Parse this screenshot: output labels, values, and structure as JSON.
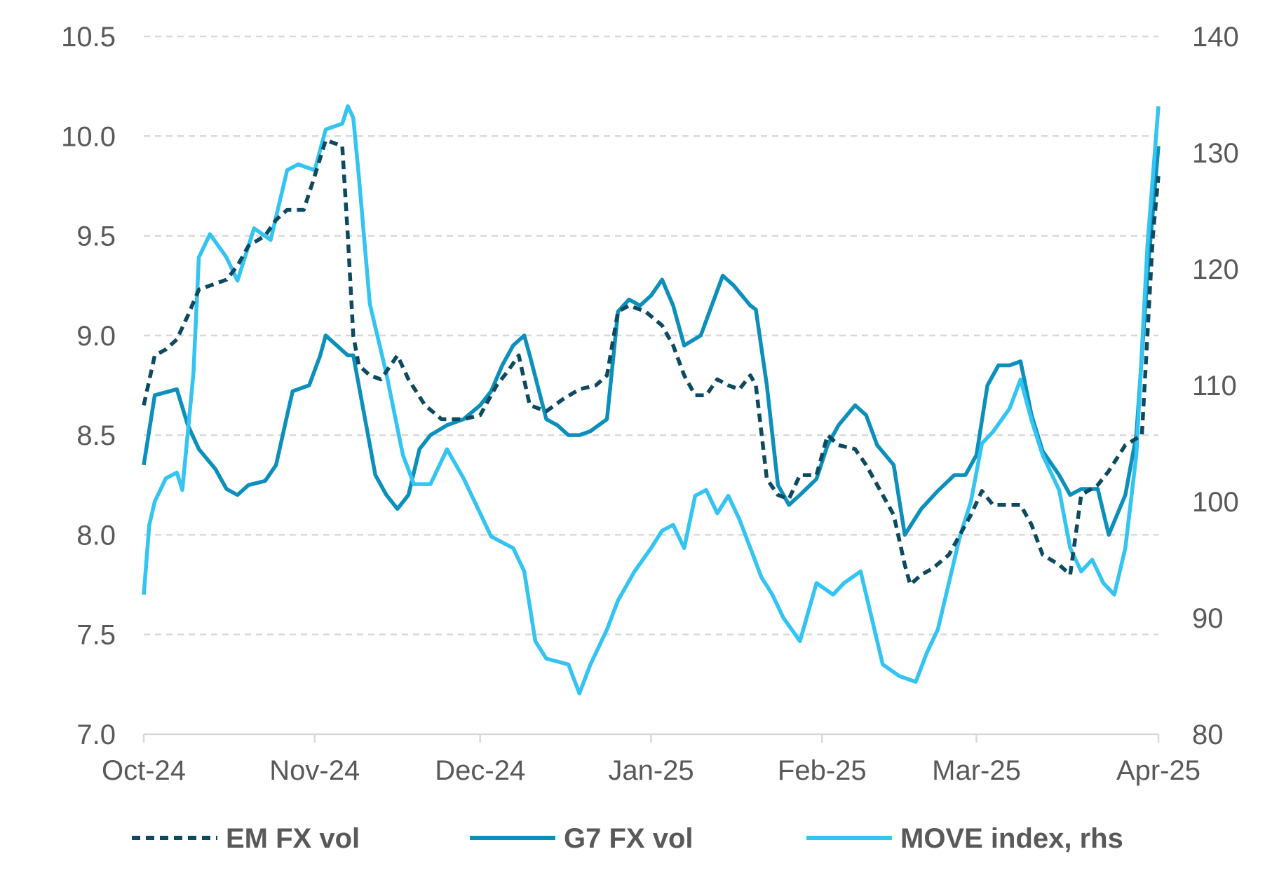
{
  "chart_data": {
    "type": "line",
    "x_ticks": [
      "Oct-24",
      "Nov-24",
      "Dec-24",
      "Jan-25",
      "Feb-25",
      "Mar-25",
      "Apr-25"
    ],
    "y_left": {
      "ticks": [
        "7.0",
        "7.5",
        "8.0",
        "8.5",
        "9.0",
        "9.5",
        "10.0",
        "10.5"
      ],
      "range": [
        7.0,
        10.5
      ]
    },
    "y_right": {
      "ticks": [
        "80",
        "90",
        "100",
        "110",
        "120",
        "130",
        "140"
      ],
      "range": [
        80,
        140
      ]
    },
    "grid": "horizontal dashed",
    "legend_position": "bottom",
    "series": [
      {
        "name": "EM FX vol",
        "axis": "left",
        "color": "#0d4a5f",
        "style": "dashed",
        "points": [
          [
            "2024-10-01",
            8.65
          ],
          [
            "2024-10-03",
            8.9
          ],
          [
            "2024-10-05",
            8.93
          ],
          [
            "2024-10-07",
            8.98
          ],
          [
            "2024-10-09",
            9.1
          ],
          [
            "2024-10-11",
            9.23
          ],
          [
            "2024-10-13",
            9.25
          ],
          [
            "2024-10-16",
            9.28
          ],
          [
            "2024-10-18",
            9.35
          ],
          [
            "2024-10-20",
            9.45
          ],
          [
            "2024-10-23",
            9.5
          ],
          [
            "2024-10-25",
            9.58
          ],
          [
            "2024-10-27",
            9.63
          ],
          [
            "2024-10-30",
            9.63
          ],
          [
            "2024-11-01",
            9.8
          ],
          [
            "2024-11-03",
            9.98
          ],
          [
            "2024-11-06",
            9.95
          ],
          [
            "2024-11-07",
            9.5
          ],
          [
            "2024-11-08",
            9.0
          ],
          [
            "2024-11-09",
            8.85
          ],
          [
            "2024-11-11",
            8.8
          ],
          [
            "2024-11-13",
            8.78
          ],
          [
            "2024-11-16",
            8.9
          ],
          [
            "2024-11-18",
            8.78
          ],
          [
            "2024-11-21",
            8.65
          ],
          [
            "2024-11-24",
            8.58
          ],
          [
            "2024-11-28",
            8.58
          ],
          [
            "2024-12-01",
            8.6
          ],
          [
            "2024-12-04",
            8.75
          ],
          [
            "2024-12-06",
            8.82
          ],
          [
            "2024-12-08",
            8.9
          ],
          [
            "2024-12-10",
            8.65
          ],
          [
            "2024-12-13",
            8.62
          ],
          [
            "2024-12-16",
            8.68
          ],
          [
            "2024-12-19",
            8.73
          ],
          [
            "2024-12-22",
            8.75
          ],
          [
            "2024-12-24",
            8.8
          ],
          [
            "2024-12-26",
            9.12
          ],
          [
            "2024-12-28",
            9.15
          ],
          [
            "2024-12-31",
            9.12
          ],
          [
            "2025-01-03",
            9.05
          ],
          [
            "2025-01-05",
            8.95
          ],
          [
            "2025-01-07",
            8.8
          ],
          [
            "2025-01-09",
            8.7
          ],
          [
            "2025-01-11",
            8.7
          ],
          [
            "2025-01-13",
            8.78
          ],
          [
            "2025-01-15",
            8.75
          ],
          [
            "2025-01-17",
            8.73
          ],
          [
            "2025-01-19",
            8.8
          ],
          [
            "2025-01-20",
            8.75
          ],
          [
            "2025-01-22",
            8.28
          ],
          [
            "2025-01-24",
            8.2
          ],
          [
            "2025-01-26",
            8.18
          ],
          [
            "2025-01-28",
            8.3
          ],
          [
            "2025-01-31",
            8.3
          ],
          [
            "2025-02-02",
            8.5
          ],
          [
            "2025-02-04",
            8.45
          ],
          [
            "2025-02-07",
            8.43
          ],
          [
            "2025-02-09",
            8.35
          ],
          [
            "2025-02-12",
            8.2
          ],
          [
            "2025-02-14",
            8.1
          ],
          [
            "2025-02-16",
            7.85
          ],
          [
            "2025-02-17",
            7.75
          ],
          [
            "2025-02-19",
            7.8
          ],
          [
            "2025-02-21",
            7.83
          ],
          [
            "2025-02-24",
            7.9
          ],
          [
            "2025-02-26",
            8.0
          ],
          [
            "2025-02-28",
            8.1
          ],
          [
            "2025-03-02",
            8.22
          ],
          [
            "2025-03-04",
            8.15
          ],
          [
            "2025-03-07",
            8.15
          ],
          [
            "2025-03-09",
            8.15
          ],
          [
            "2025-03-11",
            8.05
          ],
          [
            "2025-03-13",
            7.9
          ],
          [
            "2025-03-16",
            7.85
          ],
          [
            "2025-03-18",
            7.8
          ],
          [
            "2025-03-20",
            8.2
          ],
          [
            "2025-03-23",
            8.25
          ],
          [
            "2025-03-25",
            8.32
          ],
          [
            "2025-03-28",
            8.45
          ],
          [
            "2025-03-31",
            8.5
          ],
          [
            "2025-04-01",
            9.0
          ],
          [
            "2025-04-02",
            9.5
          ],
          [
            "2025-04-03",
            9.8
          ]
        ]
      },
      {
        "name": "G7 FX vol",
        "axis": "left",
        "color": "#0c90bb",
        "style": "solid",
        "points": [
          [
            "2024-10-01",
            8.35
          ],
          [
            "2024-10-03",
            8.7
          ],
          [
            "2024-10-07",
            8.73
          ],
          [
            "2024-10-09",
            8.55
          ],
          [
            "2024-10-11",
            8.43
          ],
          [
            "2024-10-14",
            8.33
          ],
          [
            "2024-10-16",
            8.23
          ],
          [
            "2024-10-18",
            8.2
          ],
          [
            "2024-10-20",
            8.25
          ],
          [
            "2024-10-23",
            8.27
          ],
          [
            "2024-10-25",
            8.35
          ],
          [
            "2024-10-27",
            8.6
          ],
          [
            "2024-10-28",
            8.72
          ],
          [
            "2024-10-31",
            8.75
          ],
          [
            "2024-11-02",
            8.9
          ],
          [
            "2024-11-03",
            9.0
          ],
          [
            "2024-11-05",
            8.95
          ],
          [
            "2024-11-07",
            8.9
          ],
          [
            "2024-11-08",
            8.9
          ],
          [
            "2024-11-10",
            8.6
          ],
          [
            "2024-11-12",
            8.3
          ],
          [
            "2024-11-14",
            8.2
          ],
          [
            "2024-11-16",
            8.13
          ],
          [
            "2024-11-18",
            8.2
          ],
          [
            "2024-11-20",
            8.43
          ],
          [
            "2024-11-22",
            8.5
          ],
          [
            "2024-11-25",
            8.55
          ],
          [
            "2024-11-28",
            8.58
          ],
          [
            "2024-12-01",
            8.65
          ],
          [
            "2024-12-03",
            8.72
          ],
          [
            "2024-12-05",
            8.85
          ],
          [
            "2024-12-07",
            8.95
          ],
          [
            "2024-12-09",
            9.0
          ],
          [
            "2024-12-10",
            8.9
          ],
          [
            "2024-12-13",
            8.58
          ],
          [
            "2024-12-15",
            8.55
          ],
          [
            "2024-12-17",
            8.5
          ],
          [
            "2024-12-19",
            8.5
          ],
          [
            "2024-12-21",
            8.52
          ],
          [
            "2024-12-24",
            8.58
          ],
          [
            "2024-12-26",
            9.12
          ],
          [
            "2024-12-28",
            9.18
          ],
          [
            "2024-12-30",
            9.15
          ],
          [
            "2025-01-01",
            9.2
          ],
          [
            "2025-01-03",
            9.28
          ],
          [
            "2025-01-05",
            9.15
          ],
          [
            "2025-01-07",
            8.95
          ],
          [
            "2025-01-10",
            9.0
          ],
          [
            "2025-01-12",
            9.15
          ],
          [
            "2025-01-14",
            9.3
          ],
          [
            "2025-01-16",
            9.25
          ],
          [
            "2025-01-19",
            9.15
          ],
          [
            "2025-01-20",
            9.13
          ],
          [
            "2025-01-22",
            8.75
          ],
          [
            "2025-01-24",
            8.25
          ],
          [
            "2025-01-26",
            8.15
          ],
          [
            "2025-01-28",
            8.2
          ],
          [
            "2025-01-31",
            8.28
          ],
          [
            "2025-02-02",
            8.45
          ],
          [
            "2025-02-04",
            8.55
          ],
          [
            "2025-02-07",
            8.65
          ],
          [
            "2025-02-09",
            8.6
          ],
          [
            "2025-02-11",
            8.45
          ],
          [
            "2025-02-14",
            8.35
          ],
          [
            "2025-02-16",
            8.0
          ],
          [
            "2025-02-19",
            8.13
          ],
          [
            "2025-02-22",
            8.22
          ],
          [
            "2025-02-25",
            8.3
          ],
          [
            "2025-02-27",
            8.3
          ],
          [
            "2025-03-01",
            8.4
          ],
          [
            "2025-03-03",
            8.75
          ],
          [
            "2025-03-05",
            8.85
          ],
          [
            "2025-03-07",
            8.85
          ],
          [
            "2025-03-09",
            8.87
          ],
          [
            "2025-03-11",
            8.6
          ],
          [
            "2025-03-13",
            8.42
          ],
          [
            "2025-03-16",
            8.3
          ],
          [
            "2025-03-18",
            8.2
          ],
          [
            "2025-03-20",
            8.23
          ],
          [
            "2025-03-23",
            8.23
          ],
          [
            "2025-03-25",
            8.0
          ],
          [
            "2025-03-28",
            8.2
          ],
          [
            "2025-03-30",
            8.5
          ],
          [
            "2025-04-01",
            9.3
          ],
          [
            "2025-04-03",
            9.95
          ]
        ]
      },
      {
        "name": "MOVE index, rhs",
        "axis": "right",
        "color": "#33c4f2",
        "style": "solid",
        "points": [
          [
            "2024-10-01",
            92
          ],
          [
            "2024-10-02",
            98
          ],
          [
            "2024-10-03",
            100
          ],
          [
            "2024-10-05",
            102
          ],
          [
            "2024-10-07",
            102.5
          ],
          [
            "2024-10-08",
            101
          ],
          [
            "2024-10-10",
            111
          ],
          [
            "2024-10-11",
            121
          ],
          [
            "2024-10-13",
            123
          ],
          [
            "2024-10-16",
            121
          ],
          [
            "2024-10-18",
            119
          ],
          [
            "2024-10-21",
            123.5
          ],
          [
            "2024-10-24",
            122.5
          ],
          [
            "2024-10-27",
            128.5
          ],
          [
            "2024-10-29",
            129
          ],
          [
            "2024-11-01",
            128.5
          ],
          [
            "2024-11-03",
            132
          ],
          [
            "2024-11-06",
            132.5
          ],
          [
            "2024-11-07",
            134
          ],
          [
            "2024-11-08",
            133
          ],
          [
            "2024-11-09",
            128
          ],
          [
            "2024-11-11",
            117
          ],
          [
            "2024-11-14",
            111
          ],
          [
            "2024-11-17",
            104
          ],
          [
            "2024-11-19",
            101.5
          ],
          [
            "2024-11-22",
            101.5
          ],
          [
            "2024-11-25",
            104.5
          ],
          [
            "2024-11-28",
            102
          ],
          [
            "2024-12-01",
            99
          ],
          [
            "2024-12-03",
            97
          ],
          [
            "2024-12-07",
            96
          ],
          [
            "2024-12-09",
            94
          ],
          [
            "2024-12-11",
            88
          ],
          [
            "2024-12-13",
            86.5
          ],
          [
            "2024-12-17",
            86
          ],
          [
            "2024-12-19",
            83.5
          ],
          [
            "2024-12-21",
            86
          ],
          [
            "2024-12-24",
            89
          ],
          [
            "2024-12-26",
            91.5
          ],
          [
            "2024-12-29",
            94
          ],
          [
            "2025-01-01",
            96
          ],
          [
            "2025-01-03",
            97.5
          ],
          [
            "2025-01-05",
            98
          ],
          [
            "2025-01-07",
            96
          ],
          [
            "2025-01-09",
            100.5
          ],
          [
            "2025-01-11",
            101
          ],
          [
            "2025-01-13",
            99
          ],
          [
            "2025-01-15",
            100.5
          ],
          [
            "2025-01-17",
            98.5
          ],
          [
            "2025-01-19",
            96
          ],
          [
            "2025-01-21",
            93.5
          ],
          [
            "2025-01-23",
            92
          ],
          [
            "2025-01-25",
            90
          ],
          [
            "2025-01-28",
            88
          ],
          [
            "2025-01-31",
            93
          ],
          [
            "2025-02-03",
            92
          ],
          [
            "2025-02-05",
            93
          ],
          [
            "2025-02-08",
            94
          ],
          [
            "2025-02-10",
            90
          ],
          [
            "2025-02-12",
            86
          ],
          [
            "2025-02-15",
            85
          ],
          [
            "2025-02-18",
            84.5
          ],
          [
            "2025-02-20",
            87
          ],
          [
            "2025-02-22",
            89
          ],
          [
            "2025-02-24",
            93
          ],
          [
            "2025-02-26",
            97
          ],
          [
            "2025-02-28",
            100
          ],
          [
            "2025-03-02",
            105
          ],
          [
            "2025-03-04",
            106
          ],
          [
            "2025-03-07",
            108
          ],
          [
            "2025-03-09",
            110.5
          ],
          [
            "2025-03-11",
            107
          ],
          [
            "2025-03-13",
            104
          ],
          [
            "2025-03-16",
            101
          ],
          [
            "2025-03-18",
            96
          ],
          [
            "2025-03-20",
            94
          ],
          [
            "2025-03-22",
            95
          ],
          [
            "2025-03-24",
            93
          ],
          [
            "2025-03-26",
            92
          ],
          [
            "2025-03-28",
            96
          ],
          [
            "2025-03-30",
            104
          ],
          [
            "2025-04-01",
            122
          ],
          [
            "2025-04-03",
            134
          ]
        ]
      }
    ]
  }
}
